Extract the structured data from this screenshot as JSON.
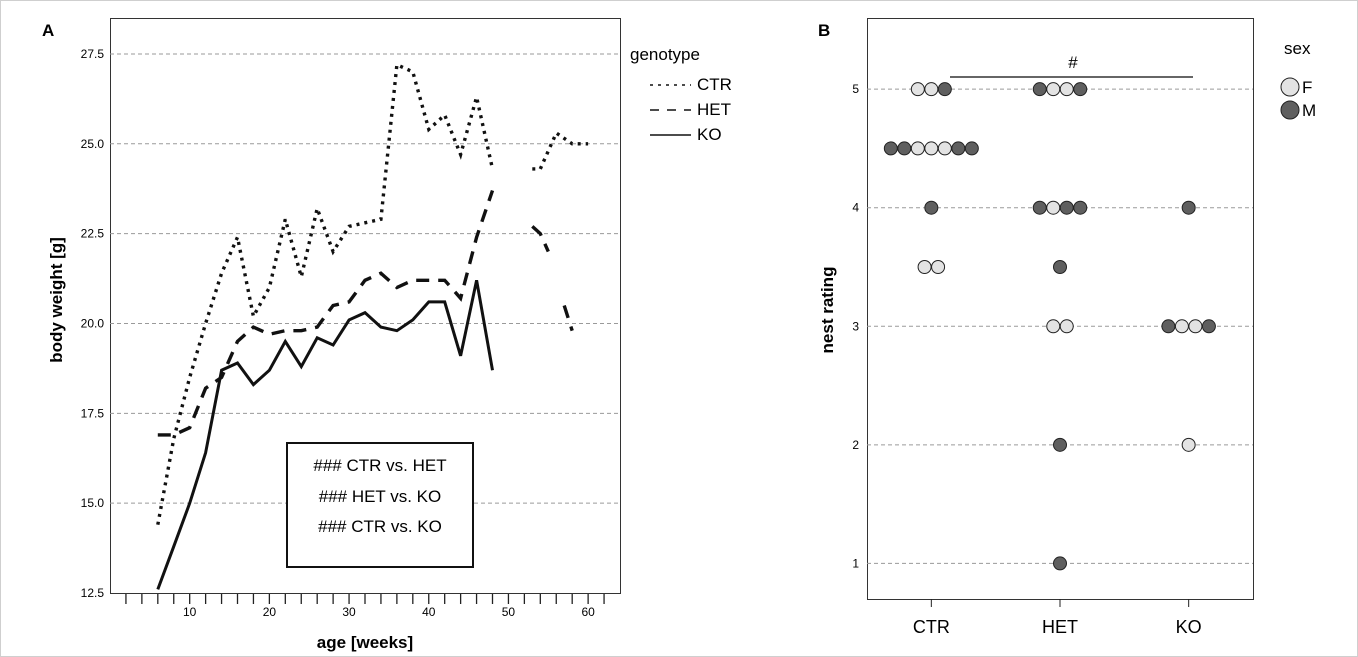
{
  "panelA": {
    "label": "A",
    "xlabel": "age [weeks]",
    "ylabel": "body weight [g]",
    "legend_title": "genotype",
    "stats": [
      "### CTR vs. HET",
      "### HET vs. KO",
      "### CTR vs. KO"
    ]
  },
  "panelB": {
    "label": "B",
    "ylabel": "nest rating",
    "legend_title": "sex",
    "significance": "#"
  },
  "chart_data": [
    {
      "type": "line",
      "xlim": [
        0,
        64
      ],
      "ylim": [
        12.5,
        28.5
      ],
      "x_ticks": [
        10,
        20,
        30,
        40,
        50,
        60
      ],
      "y_ticks": [
        "12.5",
        "15.0",
        "17.5",
        "20.0",
        "22.5",
        "25.0",
        "27.5"
      ],
      "grid": "horizontal dashed",
      "legend_position": "outside-right",
      "series": [
        {
          "name": "CTR",
          "style": "dotted",
          "points": [
            [
              6,
              14.4
            ],
            [
              8,
              16.8
            ],
            [
              10,
              18.5
            ],
            [
              12,
              20.0
            ],
            [
              14,
              21.4
            ],
            [
              16,
              22.4
            ],
            [
              18,
              20.2
            ],
            [
              20,
              21.0
            ],
            [
              22,
              22.9
            ],
            [
              24,
              21.3
            ],
            [
              26,
              23.2
            ],
            [
              28,
              22.0
            ],
            [
              30,
              22.7
            ],
            [
              32,
              22.8
            ],
            [
              34,
              22.9
            ],
            [
              36,
              27.2
            ],
            [
              38,
              27.0
            ],
            [
              40,
              25.4
            ],
            [
              42,
              25.8
            ],
            [
              44,
              24.7
            ],
            [
              46,
              26.3
            ],
            [
              48,
              24.3
            ],
            [
              null,
              null
            ],
            [
              53,
              24.3
            ],
            [
              54,
              24.3
            ],
            [
              56,
              25.3
            ],
            [
              58,
              25.0
            ],
            [
              60,
              25.0
            ]
          ]
        },
        {
          "name": "HET",
          "style": "dashed",
          "points": [
            [
              6,
              16.9
            ],
            [
              8,
              16.9
            ],
            [
              10,
              17.1
            ],
            [
              12,
              18.2
            ],
            [
              14,
              18.5
            ],
            [
              16,
              19.5
            ],
            [
              18,
              19.9
            ],
            [
              20,
              19.7
            ],
            [
              22,
              19.8
            ],
            [
              24,
              19.8
            ],
            [
              26,
              19.9
            ],
            [
              28,
              20.5
            ],
            [
              30,
              20.6
            ],
            [
              32,
              21.2
            ],
            [
              34,
              21.4
            ],
            [
              36,
              21.0
            ],
            [
              38,
              21.2
            ],
            [
              40,
              21.2
            ],
            [
              42,
              21.2
            ],
            [
              44,
              20.7
            ],
            [
              46,
              22.4
            ],
            [
              48,
              23.7
            ],
            [
              null,
              null
            ],
            [
              53,
              22.7
            ],
            [
              54,
              22.5
            ],
            [
              55,
              22.0
            ],
            [
              null,
              null
            ],
            [
              57,
              20.5
            ],
            [
              58,
              19.8
            ]
          ]
        },
        {
          "name": "KO",
          "style": "solid",
          "points": [
            [
              6,
              12.6
            ],
            [
              8,
              13.8
            ],
            [
              10,
              15.0
            ],
            [
              12,
              16.4
            ],
            [
              14,
              18.7
            ],
            [
              16,
              18.9
            ],
            [
              18,
              18.3
            ],
            [
              20,
              18.7
            ],
            [
              22,
              19.5
            ],
            [
              24,
              18.8
            ],
            [
              26,
              19.6
            ],
            [
              28,
              19.4
            ],
            [
              30,
              20.1
            ],
            [
              32,
              20.3
            ],
            [
              34,
              19.9
            ],
            [
              36,
              19.8
            ],
            [
              38,
              20.1
            ],
            [
              40,
              20.6
            ],
            [
              42,
              20.6
            ],
            [
              44,
              19.1
            ],
            [
              46,
              21.2
            ],
            [
              48,
              18.7
            ]
          ]
        }
      ]
    },
    {
      "type": "dot",
      "categories": [
        "CTR",
        "HET",
        "KO"
      ],
      "ylim": [
        0.7,
        5.6
      ],
      "y_ticks": [
        1,
        2,
        3,
        4,
        5
      ],
      "grid": "horizontal dashed",
      "legend_position": "outside-right",
      "legend": [
        {
          "name": "F",
          "color": "#e3e3e3"
        },
        {
          "name": "M",
          "color": "#5f5f5f"
        }
      ],
      "points": {
        "CTR": [
          {
            "y": 5,
            "sex": [
              "F",
              "F",
              "M"
            ]
          },
          {
            "y": 4.5,
            "sex": [
              "M",
              "M",
              "F",
              "F",
              "F",
              "M",
              "M"
            ]
          },
          {
            "y": 4,
            "sex": [
              "M"
            ]
          },
          {
            "y": 3.5,
            "sex": [
              "F",
              "F"
            ]
          }
        ],
        "HET": [
          {
            "y": 5,
            "sex": [
              "M",
              "F",
              "F",
              "M"
            ]
          },
          {
            "y": 4,
            "sex": [
              "M",
              "F",
              "M",
              "M"
            ]
          },
          {
            "y": 3.5,
            "sex": [
              "M"
            ]
          },
          {
            "y": 3,
            "sex": [
              "F",
              "F"
            ]
          },
          {
            "y": 2,
            "sex": [
              "M"
            ]
          },
          {
            "y": 1,
            "sex": [
              "M"
            ]
          }
        ],
        "KO": [
          {
            "y": 4,
            "sex": [
              "M"
            ]
          },
          {
            "y": 3,
            "sex": [
              "M",
              "F",
              "F",
              "M"
            ]
          },
          {
            "y": 2,
            "sex": [
              "F"
            ]
          }
        ]
      }
    }
  ]
}
